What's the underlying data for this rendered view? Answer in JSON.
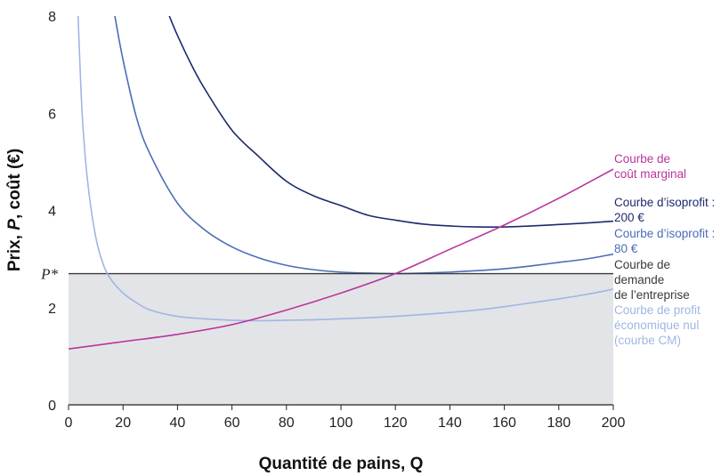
{
  "chart_data": {
    "type": "line",
    "xlabel": "Quantité de pains, Q",
    "ylabel_parts": [
      "Prix, ",
      "P",
      ", coût (€)"
    ],
    "xlim": [
      0,
      200
    ],
    "ylim": [
      0,
      8
    ],
    "xticks": [
      "0",
      "20",
      "40",
      "60",
      "80",
      "100",
      "120",
      "140",
      "160",
      "180",
      "200"
    ],
    "yticks": [
      "0",
      "2",
      "4",
      "6",
      "8"
    ],
    "pstar": {
      "label": "P*",
      "value": 2.7
    },
    "shaded_region": {
      "x": [
        0,
        200
      ],
      "y": [
        0,
        2.7
      ],
      "color": "#e3e4e8"
    },
    "series": [
      {
        "name_lines": [
          "Courbe d’isoprofit :",
          "200 €"
        ],
        "color": "#1d2a6e",
        "x": [
          37,
          40,
          45,
          50,
          60,
          70,
          80,
          90,
          100,
          110,
          120,
          130,
          140,
          150,
          160,
          170,
          180,
          190,
          200
        ],
        "y": [
          8.0,
          7.6,
          7.01,
          6.5,
          5.65,
          5.1,
          4.6,
          4.3,
          4.1,
          3.9,
          3.8,
          3.72,
          3.68,
          3.66,
          3.66,
          3.68,
          3.71,
          3.74,
          3.78
        ]
      },
      {
        "name_lines": [
          "Courbe d’isoprofit :",
          "80 €"
        ],
        "color": "#4a6cb6",
        "x": [
          17,
          20,
          25,
          30,
          40,
          50,
          60,
          70,
          80,
          90,
          100,
          110,
          120,
          130,
          140,
          150,
          160,
          170,
          180,
          190,
          200
        ],
        "y": [
          8.0,
          7.1,
          5.9,
          5.15,
          4.15,
          3.6,
          3.25,
          3.02,
          2.87,
          2.78,
          2.73,
          2.71,
          2.7,
          2.71,
          2.73,
          2.76,
          2.8,
          2.86,
          2.93,
          3.0,
          3.1
        ]
      },
      {
        "name_lines": [
          "Courbe de",
          "demande",
          "de l’entreprise"
        ],
        "color": "#3a3a3a",
        "x": [
          0,
          200
        ],
        "y": [
          2.7,
          2.7
        ]
      },
      {
        "name_lines": [
          "Courbe de profit",
          "économique nul",
          "(courbe CM)"
        ],
        "color": "#9fb6e4",
        "x": [
          3.5,
          5,
          7,
          10,
          13,
          16,
          20,
          25,
          30,
          40,
          50,
          60,
          70,
          80,
          90,
          100,
          110,
          120,
          130,
          140,
          150,
          160,
          170,
          180,
          190,
          200
        ],
        "y": [
          8.0,
          6.0,
          4.6,
          3.45,
          2.85,
          2.55,
          2.3,
          2.1,
          1.95,
          1.82,
          1.77,
          1.74,
          1.73,
          1.74,
          1.75,
          1.77,
          1.79,
          1.82,
          1.86,
          1.9,
          1.95,
          2.02,
          2.1,
          2.18,
          2.27,
          2.38
        ]
      },
      {
        "name_lines": [
          "Courbe de",
          "coût marginal"
        ],
        "color": "#b8359c",
        "x": [
          0,
          20,
          40,
          60,
          80,
          100,
          120,
          140,
          160,
          180,
          200
        ],
        "y": [
          1.15,
          1.3,
          1.45,
          1.65,
          1.95,
          2.3,
          2.7,
          3.2,
          3.7,
          4.25,
          4.85
        ]
      }
    ]
  }
}
